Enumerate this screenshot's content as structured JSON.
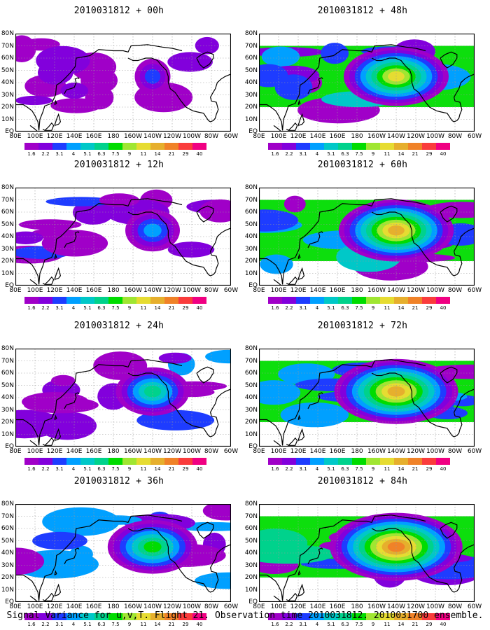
{
  "panels": [
    {
      "title": "2010031812 + 00h",
      "intensity": 0.15
    },
    {
      "title": "2010031812 + 48h",
      "intensity": 0.7
    },
    {
      "title": "2010031812 + 12h",
      "intensity": 0.3
    },
    {
      "title": "2010031812 + 60h",
      "intensity": 0.78
    },
    {
      "title": "2010031812 + 24h",
      "intensity": 0.45
    },
    {
      "title": "2010031812 + 72h",
      "intensity": 0.85
    },
    {
      "title": "2010031812 + 36h",
      "intensity": 0.58
    },
    {
      "title": "2010031812 + 84h",
      "intensity": 0.92
    }
  ],
  "lat_labels": [
    "80N",
    "70N",
    "60N",
    "50N",
    "40N",
    "30N",
    "20N",
    "10N",
    "EQ"
  ],
  "lon_labels": [
    "80E",
    "100E",
    "120E",
    "140E",
    "160E",
    "180",
    "160W",
    "140W",
    "120W",
    "100W",
    "80W",
    "60W"
  ],
  "colorbar": {
    "levels": [
      "1.6",
      "2.2",
      "3.1",
      "4",
      "5.1",
      "6.3",
      "7.5",
      "9",
      "11",
      "14",
      "21",
      "29",
      "40"
    ],
    "colors": [
      "#a000c8",
      "#8200dc",
      "#1e3cff",
      "#00a0ff",
      "#00c8c8",
      "#00d28c",
      "#00dc00",
      "#a0e632",
      "#e6dc32",
      "#e6af2d",
      "#f08228",
      "#fa3c3c",
      "#f00082"
    ]
  },
  "caption": "Signal Variance for u,v,T. Flight 21. Observation time 2010031812. 2010031700 ensemble."
}
